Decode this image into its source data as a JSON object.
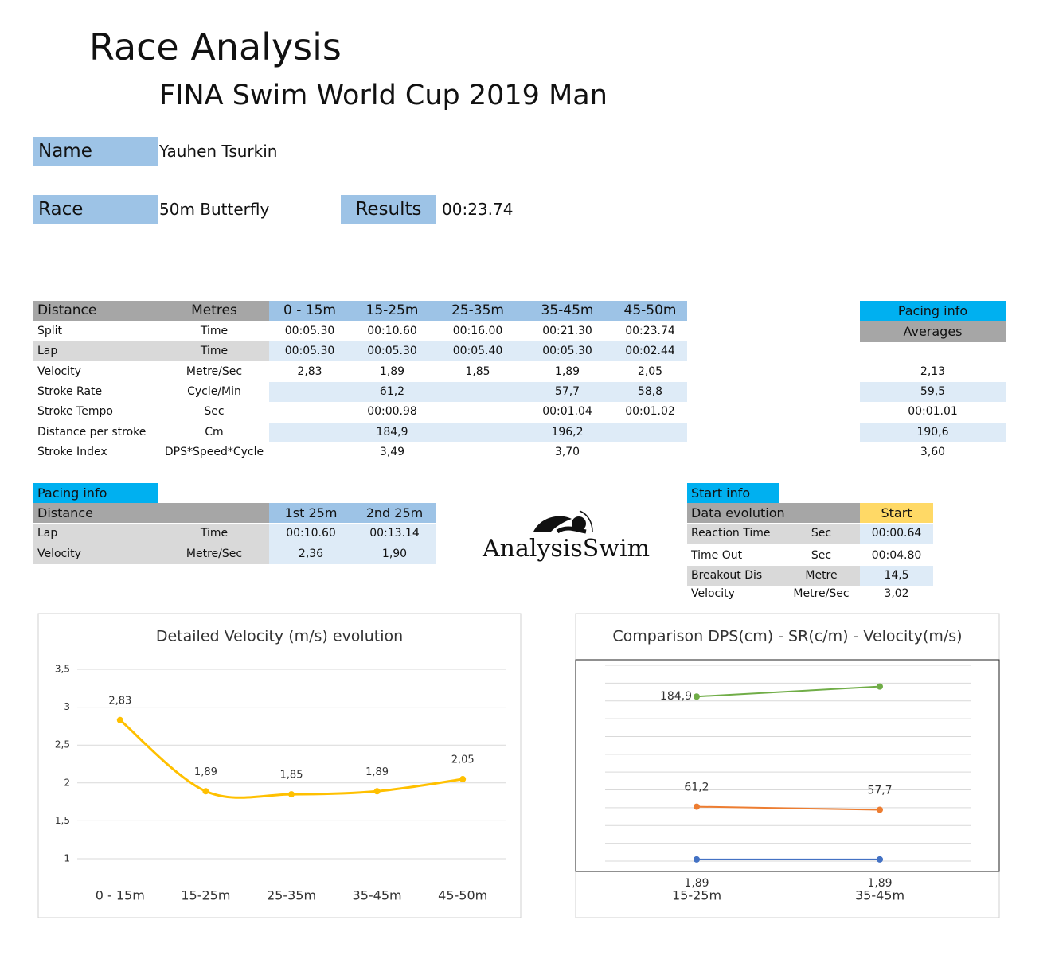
{
  "header": {
    "title": "Race Analysis",
    "subtitle": "FINA Swim World Cup 2019 Man"
  },
  "info": {
    "name_label": "Name",
    "name": "Yauhen Tsurkin",
    "race_label": "Race",
    "race": "50m Butterfly",
    "results_label": "Results",
    "results": "00:23.74"
  },
  "splits_table": {
    "header": [
      "Distance",
      "Metres",
      "0 - 15m",
      "15-25m",
      "25-35m",
      "35-45m",
      "45-50m"
    ],
    "rows": [
      [
        "Split",
        "Time",
        "00:05.30",
        "00:10.60",
        "00:16.00",
        "00:21.30",
        "00:23.74"
      ],
      [
        "Lap",
        "Time",
        "00:05.30",
        "00:05.30",
        "00:05.40",
        "00:05.30",
        "00:02.44"
      ],
      [
        "Velocity",
        "Metre/Sec",
        "2,83",
        "1,89",
        "1,85",
        "1,89",
        "2,05"
      ],
      [
        "Stroke Rate",
        "Cycle/Min",
        null,
        "61,2",
        null,
        "57,7",
        "58,8"
      ],
      [
        "Stroke Tempo",
        "Sec",
        null,
        "00:00.98",
        null,
        "00:01.04",
        "00:01.02"
      ],
      [
        "Distance per stroke",
        "Cm",
        null,
        "184,9",
        null,
        "196,2",
        null
      ],
      [
        "Stroke Index",
        "DPS*Speed*Cycle",
        null,
        "3,49",
        null,
        "3,70",
        null
      ]
    ]
  },
  "averages": {
    "title": "Pacing info",
    "header": "Averages",
    "rows": [
      null,
      null,
      "2,13",
      "59,5",
      "00:01.01",
      "190,6",
      "3,60"
    ]
  },
  "pacing_table": {
    "title": "Pacing info",
    "header": [
      "Distance",
      "1st 25m",
      "2nd 25m"
    ],
    "rows": [
      [
        "Lap",
        "Time",
        "00:10.60",
        "00:13.14"
      ],
      [
        "Velocity",
        "Metre/Sec",
        "2,36",
        "1,90"
      ]
    ]
  },
  "logo": "AnalysisSwim",
  "start_table": {
    "title": "Start info",
    "header": [
      "Data evolution",
      "Start"
    ],
    "rows": [
      [
        "Reaction Time",
        "Sec",
        "00:00.64"
      ],
      [
        "Time Out",
        "Sec",
        "00:04.80"
      ],
      [
        "Breakout Dis",
        "Metre",
        "14,5"
      ],
      [
        "Velocity",
        "Metre/Sec",
        "3,02"
      ]
    ]
  },
  "chart_data": [
    {
      "type": "line",
      "title": "Detailed Velocity (m/s)  evolution",
      "categories": [
        "0 - 15m",
        "15-25m",
        "25-35m",
        "35-45m",
        "45-50m"
      ],
      "series": [
        {
          "color": "#ffc000",
          "values": [
            2.83,
            1.89,
            1.85,
            1.89,
            2.05
          ],
          "value_labels": [
            "2,83",
            "1,89",
            "1,85",
            "1,89",
            "2,05"
          ],
          "label_position": "above"
        }
      ],
      "ylim": [
        1,
        3.5
      ],
      "yticks": [
        {
          "value": 3.5,
          "label": "3,5"
        },
        3,
        {
          "value": 2.5,
          "label": "2,5"
        },
        2,
        {
          "value": 1.5,
          "label": "1,5"
        },
        1
      ],
      "ytick_labels": true,
      "grid": true,
      "smooth": true
    },
    {
      "type": "line",
      "title": "Comparison DPS(cm) - SR(c/m) - Velocity(m/s)",
      "categories": [
        "15-25m",
        "35-45m"
      ],
      "series": [
        {
          "color": "#70ad47",
          "values": [
            184.9,
            196.2
          ],
          "value_labels": [
            "184,9",
            null
          ],
          "label_position": "left"
        },
        {
          "color": "#ed7d31",
          "values": [
            61.2,
            57.7
          ],
          "value_labels": [
            "61,2",
            "57,7"
          ],
          "label_position": "above"
        },
        {
          "color": "#4472c4",
          "values": [
            1.89,
            1.89
          ],
          "value_labels": [
            "1,89",
            "1,89"
          ],
          "label_position": "below"
        }
      ],
      "ylim": [
        0,
        220
      ],
      "yticks": [
        0,
        20,
        40,
        60,
        80,
        100,
        120,
        140,
        160,
        180,
        200,
        220
      ],
      "ytick_labels": false,
      "grid": true,
      "smooth": false
    }
  ]
}
